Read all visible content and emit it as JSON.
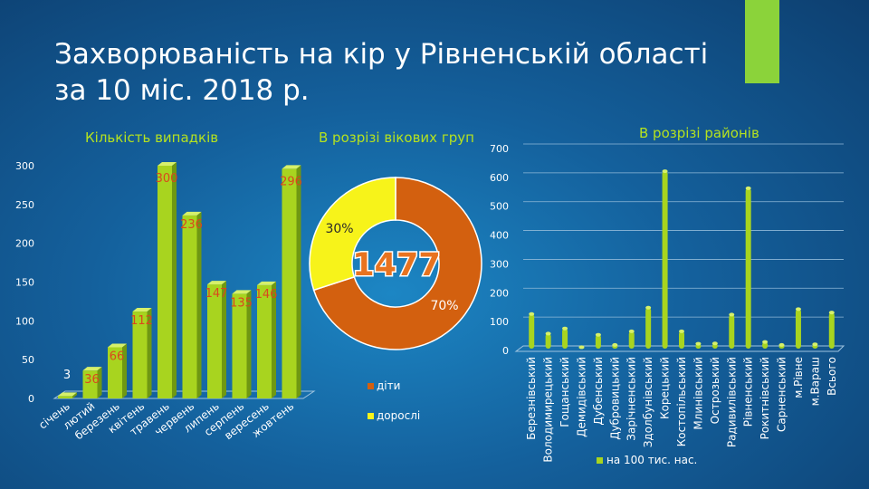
{
  "slide": {
    "title_line1": "Захворюваність на кір у Рівненській області",
    "title_line2": "за 10 міс. 2018 р."
  },
  "colors": {
    "bar": "#a8d41f",
    "bar_side": "#6f9812",
    "bar_top": "#d6f06a",
    "children": "#d3600f",
    "adults": "#f7f31a",
    "accent": "#8bd33a"
  },
  "chart_data": [
    {
      "type": "bar",
      "title": "Кількість випадків",
      "categories": [
        "січень",
        "лютий",
        "березень",
        "квітень",
        "травень",
        "червень",
        "липень",
        "серпень",
        "вересень",
        "жовтень"
      ],
      "values": [
        3,
        36,
        66,
        112,
        300,
        236,
        147,
        135,
        146,
        296
      ],
      "data_labels": [
        "3",
        "36",
        "66",
        "112",
        "300",
        "236",
        "147",
        "135",
        "146",
        "296"
      ],
      "ylim": [
        0,
        300
      ],
      "yticks": [
        "0",
        "50",
        "100",
        "150",
        "200",
        "250",
        "300"
      ]
    },
    {
      "type": "pie",
      "title": "В розрізі вікових груп",
      "total_label": "1477",
      "slices": [
        {
          "name": "діти",
          "value": 70,
          "label": "70%"
        },
        {
          "name": "дорослі",
          "value": 30,
          "label": "30%"
        }
      ]
    },
    {
      "type": "bar",
      "title": "В розрізі районів",
      "categories": [
        "Березнівський",
        "Володимирецький",
        "Гощанський",
        "Демидівський",
        "Дубенський",
        "Дубровицький",
        "Зарічненський",
        "Здолбунівський",
        "Корецький",
        "Костопільський",
        "Млинівський",
        "Острозький",
        "Радивилівський",
        "Рівненський",
        "Рокитнівський",
        "Сарненський",
        "м.Рівне",
        "м.Вараш",
        "Всього"
      ],
      "series": [
        {
          "name": "на 100 тис. нас.",
          "values": [
            120,
            52,
            70,
            5,
            48,
            13,
            60,
            142,
            615,
            60,
            17,
            18,
            118,
            556,
            23,
            13,
            137,
            15,
            125
          ]
        }
      ],
      "ylim": [
        0,
        700
      ],
      "yticks": [
        "0",
        "100",
        "200",
        "300",
        "400",
        "500",
        "600",
        "700"
      ]
    }
  ]
}
